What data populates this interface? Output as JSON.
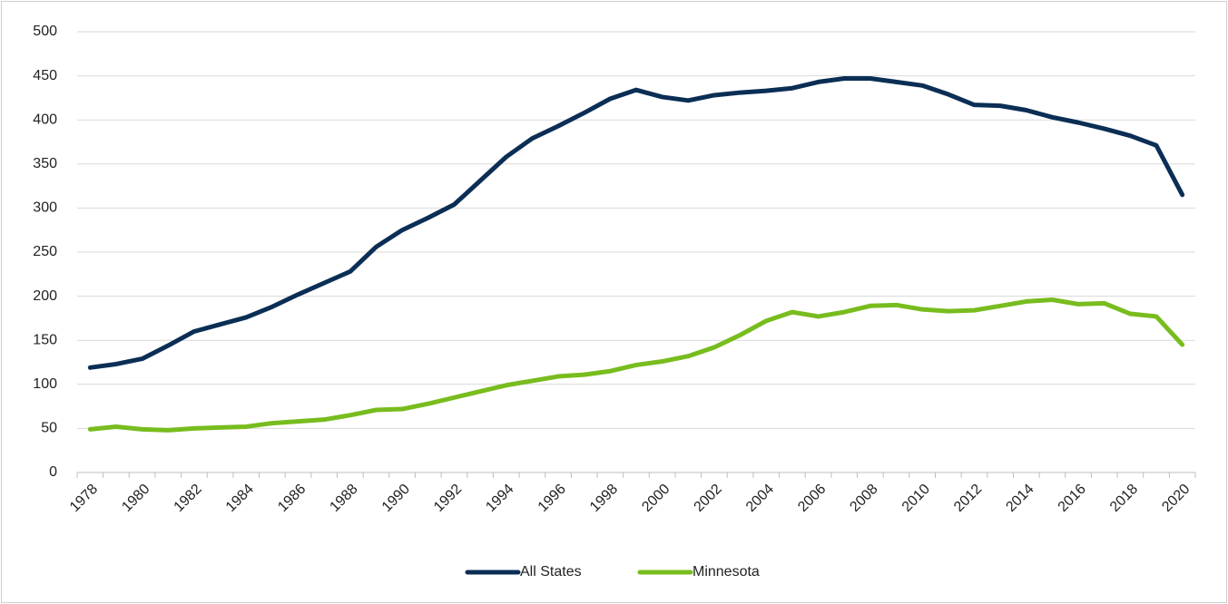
{
  "chart_data": {
    "type": "line",
    "categories": [
      "1978",
      null,
      "1980",
      null,
      "1982",
      null,
      "1984",
      null,
      "1986",
      null,
      "1988",
      null,
      "1990",
      null,
      "1992",
      null,
      "1994",
      null,
      "1996",
      null,
      "1998",
      null,
      "2000",
      null,
      "2002",
      null,
      "2004",
      null,
      "2006",
      null,
      "2008",
      null,
      "2010",
      null,
      "2012",
      null,
      "2014",
      null,
      "2016",
      null,
      "2018",
      null,
      "2020"
    ],
    "series": [
      {
        "name": "All States",
        "color": "#0b2e55",
        "values": [
          119,
          123,
          129,
          144,
          160,
          168,
          176,
          188,
          202,
          215,
          228,
          256,
          275,
          289,
          304,
          331,
          358,
          379,
          393,
          408,
          424,
          434,
          426,
          422,
          428,
          431,
          433,
          436,
          443,
          447,
          447,
          443,
          439,
          429,
          417,
          416,
          411,
          403,
          397,
          390,
          382,
          371,
          315
        ]
      },
      {
        "name": "Minnesota",
        "color": "#78bc1e",
        "values": [
          49,
          52,
          49,
          48,
          50,
          51,
          52,
          56,
          58,
          60,
          65,
          71,
          72,
          78,
          85,
          92,
          99,
          104,
          109,
          111,
          115,
          122,
          126,
          132,
          142,
          156,
          172,
          182,
          177,
          182,
          189,
          190,
          185,
          183,
          184,
          189,
          194,
          196,
          191,
          192,
          180,
          177,
          145
        ]
      }
    ],
    "ylim": [
      0,
      500
    ],
    "yticks": [
      0,
      50,
      100,
      150,
      200,
      250,
      300,
      350,
      400,
      450,
      500
    ],
    "grid": true,
    "legend": "bottom"
  }
}
